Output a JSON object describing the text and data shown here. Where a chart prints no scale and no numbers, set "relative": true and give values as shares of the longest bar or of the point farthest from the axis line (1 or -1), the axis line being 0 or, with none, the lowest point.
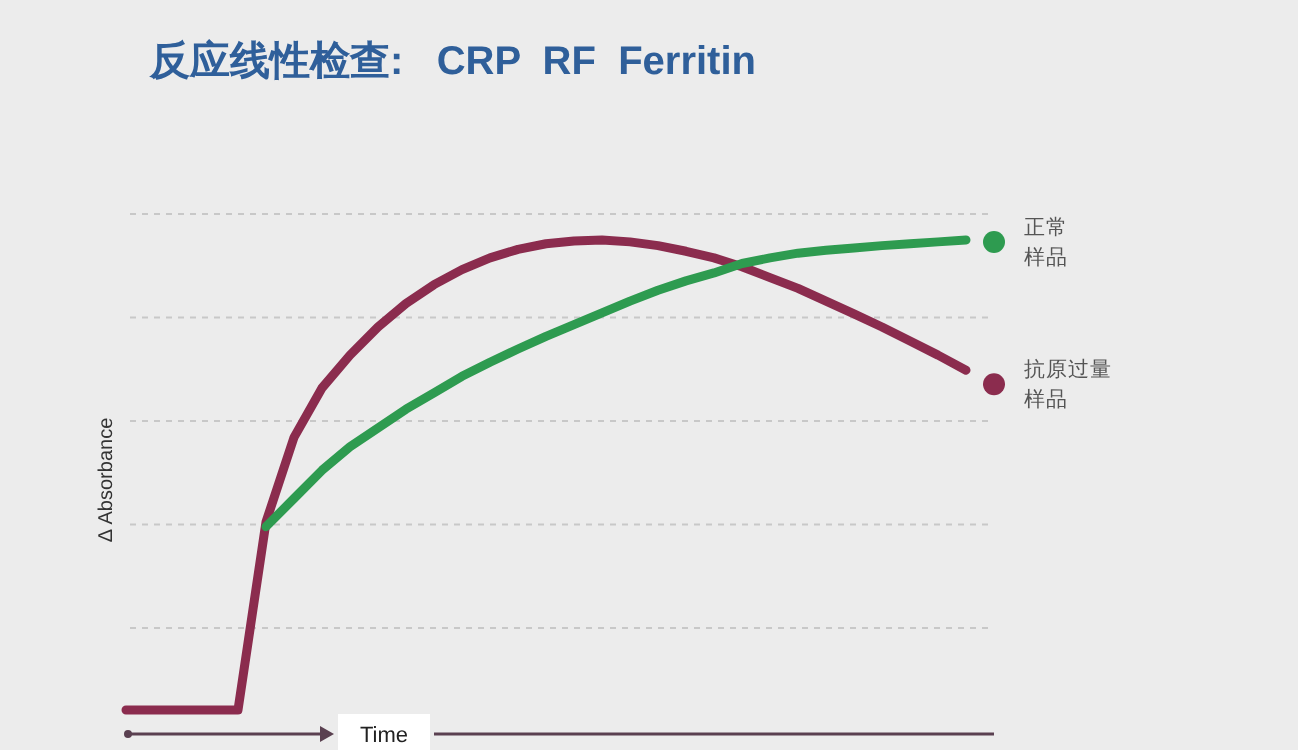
{
  "chart_data": {
    "type": "line",
    "title": "反应线性检查:   CRP  RF  Ferritin",
    "xlabel": "Time",
    "ylabel": "Δ Absorbance",
    "relative": true,
    "grid": "y",
    "legend": "right",
    "marker": "none",
    "line_style": "solid",
    "categories": [
      null,
      null,
      null,
      null,
      null,
      null,
      null,
      null,
      null,
      null,
      null,
      null,
      null,
      null,
      null,
      null,
      null,
      null,
      null,
      null,
      null,
      null,
      null,
      null,
      null,
      null,
      null,
      null,
      null,
      null,
      null
    ],
    "series": [
      {
        "name": "正常样品",
        "color": "#2e9b50",
        "values": [
          null,
          null,
          null,
          null,
          null,
          0.39,
          0.45,
          0.51,
          0.56,
          0.6,
          0.64,
          0.675,
          0.71,
          0.74,
          0.768,
          0.795,
          0.82,
          0.845,
          0.87,
          0.893,
          0.913,
          0.93,
          0.95,
          0.962,
          0.972,
          0.978,
          0.983,
          0.988,
          0.992,
          0.996,
          1.0
        ]
      },
      {
        "name": "抗原过量样品",
        "color": "#8b2c4e",
        "values": [
          0,
          0,
          0,
          0,
          0,
          0.4,
          0.58,
          0.685,
          0.755,
          0.815,
          0.865,
          0.905,
          0.937,
          0.962,
          0.98,
          0.992,
          0.998,
          1.0,
          0.996,
          0.988,
          0.976,
          0.962,
          0.943,
          0.92,
          0.897,
          0.87,
          0.843,
          0.815,
          0.785,
          0.755,
          0.723
        ]
      }
    ]
  }
}
